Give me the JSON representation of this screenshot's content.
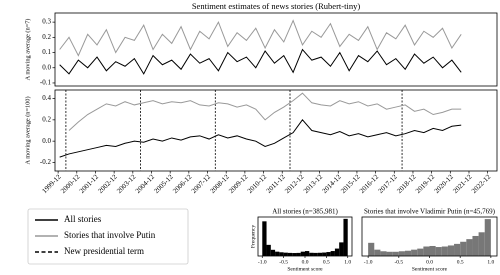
{
  "chart_data": [
    {
      "type": "line",
      "title": "Sentiment estimates of news stories (Rubert-tiny)",
      "ylabel": "A moving average (n=7)",
      "x": [
        "2000-01",
        "2000-07",
        "2001-01",
        "2001-07",
        "2002-01",
        "2002-07",
        "2003-01",
        "2003-07",
        "2004-01",
        "2004-07",
        "2005-01",
        "2005-07",
        "2006-01",
        "2006-07",
        "2007-01",
        "2007-07",
        "2008-01",
        "2008-07",
        "2009-01",
        "2009-07",
        "2010-01",
        "2010-07",
        "2011-01",
        "2011-07",
        "2012-01",
        "2012-07",
        "2013-01",
        "2013-07",
        "2014-01",
        "2014-07",
        "2015-01",
        "2015-07",
        "2016-01",
        "2016-07",
        "2017-01",
        "2017-07",
        "2018-01",
        "2018-07",
        "2019-01",
        "2019-07",
        "2020-01",
        "2020-07",
        "2021-01",
        "2021-07"
      ],
      "series": [
        {
          "color": "#999999",
          "values": [
            0.12,
            0.2,
            0.08,
            0.22,
            0.15,
            0.25,
            0.1,
            0.2,
            0.18,
            0.28,
            0.12,
            0.22,
            0.16,
            0.27,
            0.12,
            0.24,
            0.19,
            0.3,
            0.14,
            0.23,
            0.18,
            0.26,
            0.13,
            0.25,
            0.17,
            0.31,
            0.15,
            0.24,
            0.2,
            0.29,
            0.14,
            0.22,
            0.18,
            0.27,
            0.12,
            0.23,
            0.19,
            0.28,
            0.15,
            0.24,
            0.2,
            0.26,
            0.13,
            0.22
          ]
        },
        {
          "color": "#000000",
          "values": [
            0.02,
            -0.04,
            0.05,
            0.0,
            0.07,
            -0.02,
            0.04,
            0.01,
            0.06,
            -0.04,
            0.08,
            0.02,
            0.05,
            -0.01,
            0.09,
            0.03,
            0.06,
            -0.02,
            0.1,
            0.04,
            0.07,
            0.0,
            0.11,
            0.03,
            0.08,
            -0.03,
            0.12,
            0.05,
            0.07,
            0.01,
            0.1,
            -0.02,
            0.08,
            0.04,
            0.11,
            0.02,
            0.06,
            -0.01,
            0.09,
            0.03,
            0.07,
            0.0,
            0.05,
            -0.03
          ]
        }
      ],
      "xlim": [
        "1999-10",
        "2023-06"
      ],
      "ylim": [
        -0.12,
        0.36
      ],
      "yticks": [
        -0.1,
        {
          "value": 0,
          "label": "0.0"
        },
        0.1,
        0.2,
        0.3
      ]
    },
    {
      "type": "line",
      "ylabel": "A moving average (n=100)",
      "x": [
        "2000-01",
        "2000-07",
        "2001-01",
        "2001-07",
        "2002-01",
        "2002-07",
        "2003-01",
        "2003-07",
        "2004-01",
        "2004-07",
        "2005-01",
        "2005-07",
        "2006-01",
        "2006-07",
        "2007-01",
        "2007-07",
        "2008-01",
        "2008-07",
        "2009-01",
        "2009-07",
        "2010-01",
        "2010-07",
        "2011-01",
        "2011-07",
        "2012-01",
        "2012-07",
        "2013-01",
        "2013-07",
        "2014-01",
        "2014-07",
        "2015-01",
        "2015-07",
        "2016-01",
        "2016-07",
        "2017-01",
        "2017-07",
        "2018-01",
        "2018-07",
        "2019-01",
        "2019-07",
        "2020-01",
        "2020-07",
        "2021-01",
        "2021-07"
      ],
      "series": [
        {
          "name": "Stories that involve Putin",
          "color": "#999999",
          "values": [
            null,
            0.1,
            0.18,
            0.25,
            0.3,
            0.35,
            0.33,
            0.37,
            0.34,
            0.36,
            0.38,
            0.35,
            0.37,
            0.36,
            0.38,
            0.34,
            0.33,
            0.36,
            0.35,
            0.32,
            0.34,
            0.3,
            0.2,
            0.27,
            0.32,
            0.38,
            0.45,
            0.36,
            0.34,
            0.33,
            0.38,
            0.35,
            0.37,
            0.33,
            0.35,
            0.3,
            0.32,
            0.34,
            0.28,
            0.3,
            0.25,
            0.27,
            0.3,
            0.3
          ]
        },
        {
          "name": "All stories",
          "color": "#000000",
          "values": [
            -0.15,
            -0.12,
            -0.1,
            -0.08,
            -0.06,
            -0.04,
            -0.05,
            -0.02,
            0.0,
            -0.01,
            0.02,
            0.0,
            0.03,
            0.01,
            0.04,
            0.05,
            0.02,
            0.06,
            0.03,
            0.05,
            0.02,
            0.0,
            -0.05,
            -0.02,
            0.03,
            0.08,
            0.2,
            0.1,
            0.08,
            0.06,
            0.09,
            0.05,
            0.07,
            0.04,
            0.06,
            0.08,
            0.05,
            0.07,
            0.1,
            0.08,
            0.12,
            0.1,
            0.14,
            0.15
          ]
        }
      ],
      "terms": {
        "name": "New presidential term",
        "dates": [
          "2000-05",
          "2004-05",
          "2008-05",
          "2012-05",
          "2018-05"
        ]
      },
      "xlim": [
        "1999-10",
        "2023-06"
      ],
      "ylim": [
        -0.28,
        0.48
      ],
      "yticks": [
        -0.2,
        {
          "value": 0,
          "label": "0.0"
        },
        0.2,
        0.4
      ],
      "xticks": [
        "1999-12",
        "2000-12",
        "2001-12",
        "2002-12",
        "2003-12",
        "2004-12",
        "2005-12",
        "2006-12",
        "2007-12",
        "2008-12",
        "2009-12",
        "2010-12",
        "2011-12",
        "2012-12",
        "2013-12",
        "2014-12",
        "2015-12",
        "2016-12",
        "2017-12",
        "2018-12",
        "2019-12",
        "2020-12",
        "2021-12",
        "2022-12"
      ]
    },
    {
      "type": "histogram",
      "title": "All stories (n=385,981)",
      "xlabel": "Sentiment score",
      "ylabel": "Frequency",
      "color": "#000000",
      "bins": [
        -1.0,
        -0.9,
        -0.8,
        -0.7,
        -0.6,
        -0.5,
        -0.4,
        -0.3,
        -0.2,
        -0.1,
        0,
        0.1,
        0.2,
        0.3,
        0.4,
        0.5,
        0.6,
        0.7,
        0.8,
        0.9,
        1.0
      ],
      "counts": [
        28000,
        9000,
        5000,
        3500,
        3000,
        2700,
        2500,
        2400,
        2500,
        3500,
        4000,
        2600,
        2500,
        2600,
        2800,
        3200,
        4000,
        6000,
        11000,
        30000
      ],
      "xlim": [
        -1.1,
        1.1
      ],
      "ylim": [
        0,
        31500
      ],
      "xticks": [
        {
          "value": -1,
          "label": "-1.0"
        },
        -0.5,
        {
          "value": 0,
          "label": "0.0"
        },
        0.5,
        {
          "value": 1,
          "label": "1.0"
        }
      ]
    },
    {
      "type": "histogram",
      "title": "Stories that involve Vladimir Putin (n=45,769)",
      "xlabel": "Sentiment score",
      "color": "#777777",
      "bins": [
        -1.0,
        -0.9,
        -0.8,
        -0.7,
        -0.6,
        -0.5,
        -0.4,
        -0.3,
        -0.2,
        -0.1,
        0,
        0.1,
        0.2,
        0.3,
        0.4,
        0.5,
        0.6,
        0.7,
        0.8,
        0.9,
        1.0
      ],
      "counts": [
        2500,
        1200,
        900,
        800,
        800,
        900,
        1000,
        1200,
        1400,
        1800,
        1900,
        1700,
        1800,
        2000,
        2300,
        2700,
        3200,
        3800,
        4500,
        7000
      ],
      "xlim": [
        -1.1,
        1.1
      ],
      "ylim": [
        0,
        7400
      ],
      "xticks": [
        {
          "value": -1,
          "label": "-1.0"
        },
        -0.5,
        {
          "value": 0,
          "label": "0.0"
        },
        0.5,
        {
          "value": 1,
          "label": "1.0"
        }
      ]
    }
  ]
}
